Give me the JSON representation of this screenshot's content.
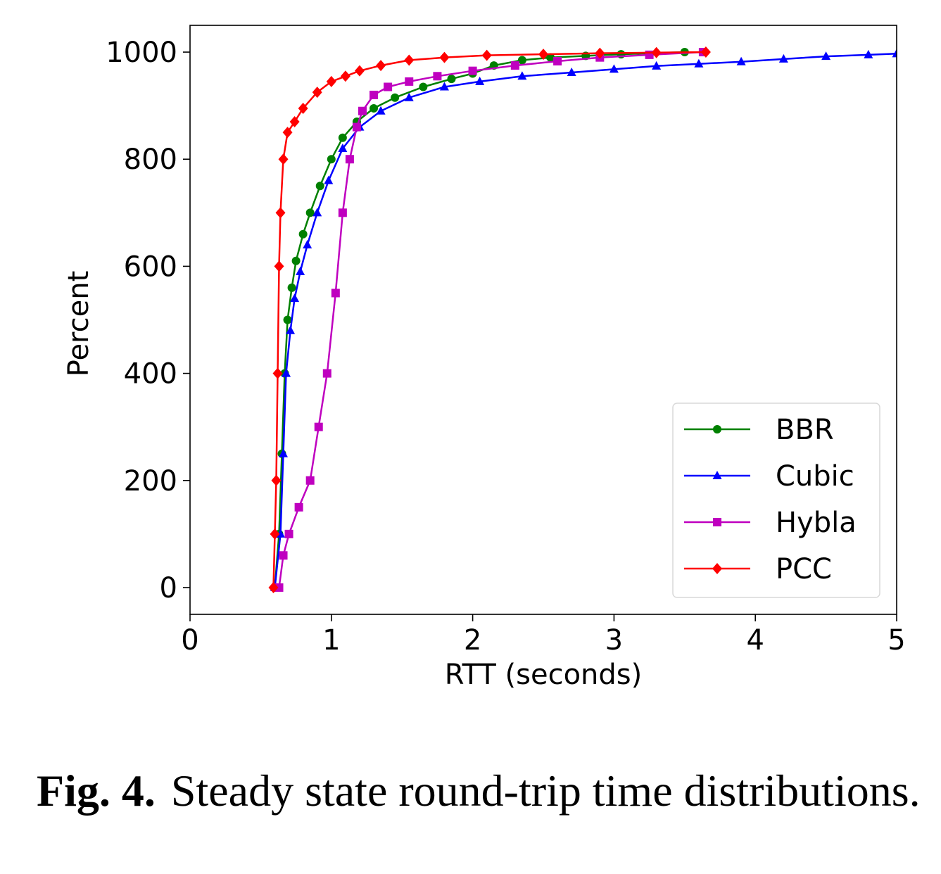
{
  "caption": {
    "label": "Fig. 4.",
    "text": "Steady state round-trip time distributions."
  },
  "chart_data": {
    "type": "line",
    "title": "",
    "xlabel": "RTT (seconds)",
    "ylabel": "Percent",
    "xlim": [
      0,
      5
    ],
    "ylim": [
      -50,
      1050
    ],
    "xticks": [
      0,
      1,
      2,
      3,
      4,
      5
    ],
    "yticks": [
      0,
      200,
      400,
      600,
      800,
      1000
    ],
    "grid": false,
    "legend_position": "lower-right",
    "series": [
      {
        "name": "BBR",
        "color": "#008000",
        "marker": "circle",
        "x": [
          0.6,
          0.63,
          0.65,
          0.67,
          0.69,
          0.72,
          0.75,
          0.8,
          0.85,
          0.92,
          1.0,
          1.08,
          1.18,
          1.3,
          1.45,
          1.65,
          1.85,
          2.0,
          2.15,
          2.35,
          2.55,
          2.8,
          3.05,
          3.5
        ],
        "y": [
          0,
          100,
          250,
          400,
          500,
          560,
          610,
          660,
          700,
          750,
          800,
          840,
          870,
          895,
          915,
          935,
          950,
          960,
          975,
          985,
          990,
          993,
          996,
          1000
        ]
      },
      {
        "name": "Cubic",
        "color": "#0000ff",
        "marker": "triangle",
        "x": [
          0.6,
          0.64,
          0.66,
          0.68,
          0.71,
          0.74,
          0.78,
          0.83,
          0.9,
          0.98,
          1.08,
          1.2,
          1.35,
          1.55,
          1.8,
          2.05,
          2.35,
          2.7,
          3.0,
          3.3,
          3.6,
          3.9,
          4.2,
          4.5,
          4.8,
          5.0
        ],
        "y": [
          0,
          100,
          250,
          400,
          480,
          540,
          590,
          640,
          700,
          760,
          820,
          860,
          890,
          915,
          935,
          945,
          955,
          962,
          968,
          974,
          978,
          982,
          987,
          992,
          995,
          997
        ]
      },
      {
        "name": "Hybla",
        "color": "#bf00bf",
        "marker": "square",
        "x": [
          0.63,
          0.66,
          0.7,
          0.77,
          0.85,
          0.91,
          0.97,
          1.03,
          1.08,
          1.13,
          1.18,
          1.22,
          1.3,
          1.4,
          1.55,
          1.75,
          2.0,
          2.3,
          2.6,
          2.9,
          3.25,
          3.63
        ],
        "y": [
          0,
          60,
          100,
          150,
          200,
          300,
          400,
          550,
          700,
          800,
          860,
          890,
          920,
          935,
          945,
          955,
          965,
          975,
          983,
          990,
          995,
          1000
        ]
      },
      {
        "name": "PCC",
        "color": "#ff0000",
        "marker": "diamond",
        "x": [
          0.59,
          0.6,
          0.61,
          0.62,
          0.63,
          0.64,
          0.66,
          0.69,
          0.74,
          0.8,
          0.9,
          1.0,
          1.1,
          1.2,
          1.35,
          1.55,
          1.8,
          2.1,
          2.5,
          2.9,
          3.3,
          3.65
        ],
        "y": [
          0,
          100,
          200,
          400,
          600,
          700,
          800,
          850,
          870,
          895,
          925,
          945,
          955,
          965,
          975,
          985,
          990,
          994,
          996,
          998,
          999,
          1000
        ]
      }
    ]
  }
}
